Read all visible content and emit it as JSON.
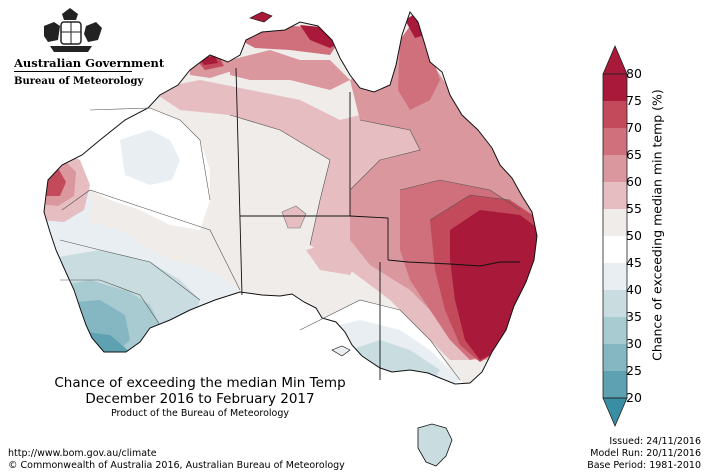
{
  "logo": {
    "line1": "Australian Government",
    "line2": "Bureau of Meteorology",
    "crest": "commonwealth-coat-of-arms"
  },
  "title": {
    "line1": "Chance of exceeding the median Min Temp",
    "line2": "December 2016 to February 2017",
    "product": "Product of the Bureau of Meteorology"
  },
  "footer": {
    "url": "http://www.bom.gov.au/climate",
    "copyright": "© Commonwealth of Australia 2016, Australian Bureau of Meteorology",
    "issued": "Issued: 24/11/2016",
    "model_run": "Model Run: 20/11/2016",
    "base_period": "Base Period: 1981-2010"
  },
  "colorbar": {
    "title": "Chance of exceeding median min temp (%)",
    "ticks": [
      "80",
      "75",
      "70",
      "65",
      "60",
      "55",
      "50",
      "45",
      "40",
      "35",
      "30",
      "25",
      "20"
    ],
    "colors": {
      "80": "#a8193a",
      "75": "#c24a5a",
      "70": "#d0707c",
      "65": "#da979e",
      "60": "#e6bdc1",
      "55": "#f0ecea",
      "50": "#ffffff",
      "45": "#e8eef1",
      "40": "#c9dde1",
      "35": "#a7cbd1",
      "30": "#84b7c1",
      "25": "#5ea2b2",
      "20": "#3a8ea4"
    }
  }
}
